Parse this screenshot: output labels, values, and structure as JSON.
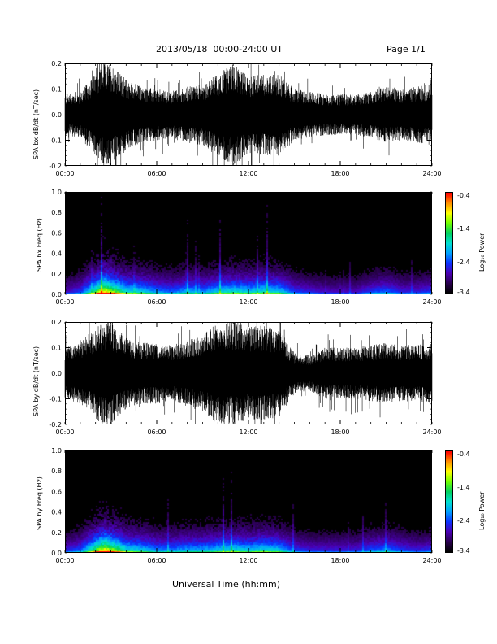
{
  "header": {
    "title": "2013/05/18  00:00-24:00 UT",
    "page": "Page 1/1"
  },
  "xlabel": "Universal Time (hh:mm)",
  "colorbar": {
    "label": "Log₁₀ Power",
    "ticks": [
      "-0.4",
      "-1.4",
      "-2.4",
      "-3.4"
    ],
    "range": [
      -3.4,
      -0.4
    ],
    "colors": [
      "#000000",
      "#2a0050",
      "#4b00b4",
      "#0a32ff",
      "#00a0ff",
      "#00e0d0",
      "#00d060",
      "#70ff00",
      "#ffff00",
      "#ff9000",
      "#ff0000"
    ]
  },
  "chart_data": [
    {
      "type": "line",
      "ylabel": "SPA bx dB/dt (nT/sec)",
      "xlim": [
        0,
        24
      ],
      "ylim": [
        -0.2,
        0.2
      ],
      "xticks": [
        "00:00",
        "06:00",
        "12:00",
        "18:00",
        "24:00"
      ],
      "yticks": [
        "-0.2",
        "-0.1",
        "0.0",
        "0.1",
        "0.2"
      ],
      "envelope": {
        "hours": [
          0,
          1,
          2,
          2.5,
          3,
          4,
          5,
          6,
          7,
          8,
          9,
          10,
          11,
          12,
          13,
          14,
          15,
          16,
          17,
          18,
          19,
          20,
          21,
          22,
          23,
          24
        ],
        "amplitude": [
          0.08,
          0.09,
          0.16,
          0.2,
          0.2,
          0.14,
          0.11,
          0.1,
          0.09,
          0.11,
          0.12,
          0.16,
          0.2,
          0.15,
          0.16,
          0.16,
          0.1,
          0.09,
          0.08,
          0.08,
          0.08,
          0.09,
          0.11,
          0.1,
          0.11,
          0.12
        ]
      }
    },
    {
      "type": "heatmap",
      "ylabel": "SPA bx Freq (Hz)",
      "xlim": [
        0,
        24
      ],
      "ylim": [
        0,
        1.0
      ],
      "xticks": [
        "00:00",
        "06:00",
        "12:00",
        "18:00",
        "24:00"
      ],
      "yticks": [
        "0.0",
        "0.2",
        "0.4",
        "0.6",
        "0.8",
        "1.0"
      ],
      "activity": {
        "hours": [
          0,
          1,
          2,
          2.5,
          3,
          4,
          5,
          6,
          7,
          8,
          9,
          10,
          11,
          12,
          13,
          14,
          15,
          16,
          17,
          18,
          19,
          20,
          21,
          22,
          23,
          24
        ],
        "level": [
          0.25,
          0.35,
          0.75,
          1.0,
          0.85,
          0.6,
          0.55,
          0.45,
          0.4,
          0.5,
          0.45,
          0.55,
          0.6,
          0.55,
          0.6,
          0.55,
          0.35,
          0.3,
          0.25,
          0.25,
          0.25,
          0.35,
          0.4,
          0.3,
          0.3,
          0.35
        ]
      }
    },
    {
      "type": "line",
      "ylabel": "SPA by dB/dt (nT/sec)",
      "xlim": [
        0,
        24
      ],
      "ylim": [
        -0.2,
        0.2
      ],
      "xticks": [
        "00:00",
        "06:00",
        "12:00",
        "18:00",
        "24:00"
      ],
      "yticks": [
        "-0.2",
        "-0.1",
        "0.0",
        "0.1",
        "0.2"
      ],
      "envelope": {
        "hours": [
          0,
          1,
          2,
          2.5,
          3,
          4,
          5,
          6,
          7,
          8,
          9,
          10,
          11,
          12,
          13,
          14,
          15,
          16,
          17,
          18,
          19,
          20,
          21,
          22,
          23,
          24
        ],
        "amplitude": [
          0.1,
          0.12,
          0.18,
          0.2,
          0.2,
          0.14,
          0.12,
          0.12,
          0.11,
          0.13,
          0.15,
          0.2,
          0.2,
          0.18,
          0.19,
          0.17,
          0.08,
          0.07,
          0.1,
          0.1,
          0.1,
          0.11,
          0.12,
          0.11,
          0.11,
          0.12
        ]
      }
    },
    {
      "type": "heatmap",
      "ylabel": "SPA by Freq (Hz)",
      "xlim": [
        0,
        24
      ],
      "ylim": [
        0,
        1.0
      ],
      "xticks": [
        "00:00",
        "06:00",
        "12:00",
        "18:00",
        "24:00"
      ],
      "yticks": [
        "0.0",
        "0.2",
        "0.4",
        "0.6",
        "0.8",
        "1.0"
      ],
      "activity": {
        "hours": [
          0,
          1,
          2,
          2.5,
          3,
          4,
          5,
          6,
          7,
          8,
          9,
          10,
          11,
          12,
          13,
          14,
          15,
          16,
          17,
          18,
          19,
          20,
          21,
          22,
          23,
          24
        ],
        "level": [
          0.3,
          0.4,
          0.8,
          1.0,
          0.9,
          0.6,
          0.55,
          0.45,
          0.45,
          0.5,
          0.5,
          0.55,
          0.6,
          0.55,
          0.6,
          0.55,
          0.35,
          0.3,
          0.3,
          0.3,
          0.3,
          0.4,
          0.45,
          0.35,
          0.3,
          0.35
        ]
      }
    }
  ]
}
